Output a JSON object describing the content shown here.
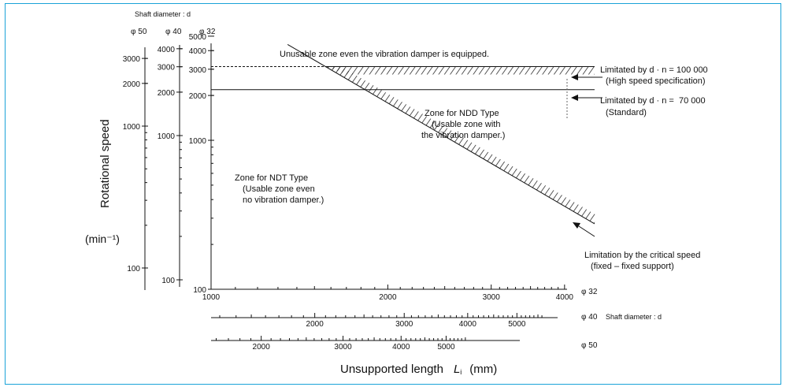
{
  "chart_data": {
    "type": "line",
    "title": "",
    "ylabel": "Rotational speed",
    "ylabel_unit": "(min⁻¹)",
    "xlabel": "Unsupported length",
    "xlabel_symbol": "L",
    "xlabel_symbol_sub": "i",
    "xlabel_unit": "(mm)",
    "shaft_diameter_label": "Shaft diameter : d",
    "scale": "log-log",
    "y_axes": [
      {
        "diameter": "φ 50",
        "ticks": [
          {
            "v": 100,
            "label": "100"
          },
          {
            "v": 1000,
            "label": "1000"
          },
          {
            "v": 2000,
            "label": "2000"
          },
          {
            "v": 3000,
            "label": "3000"
          }
        ]
      },
      {
        "diameter": "φ 40",
        "ticks": [
          {
            "v": 100,
            "label": "100"
          },
          {
            "v": 1000,
            "label": "1000"
          },
          {
            "v": 2000,
            "label": "2000"
          },
          {
            "v": 3000,
            "label": "3000"
          },
          {
            "v": 4000,
            "label": "4000"
          }
        ]
      },
      {
        "diameter": "φ 32",
        "ticks": [
          {
            "v": 100,
            "label": "100"
          },
          {
            "v": 1000,
            "label": "1000"
          },
          {
            "v": 2000,
            "label": "2000"
          },
          {
            "v": 3000,
            "label": "3000"
          },
          {
            "v": 4000,
            "label": "4000"
          },
          {
            "v": 5000,
            "label": "5000"
          }
        ]
      }
    ],
    "x_axes": [
      {
        "diameter": "φ 32",
        "xlim": [
          1000,
          4500
        ],
        "labels": [
          {
            "v": 1000,
            "label": "1000"
          },
          {
            "v": 2000,
            "label": "2000"
          },
          {
            "v": 3000,
            "label": "3000"
          },
          {
            "v": 4000,
            "label": "4000"
          }
        ]
      },
      {
        "diameter": "φ 40",
        "extra_label": "Shaft diameter : d",
        "labels": [
          {
            "v": 2000,
            "label": "2000"
          },
          {
            "v": 3000,
            "label": "3000"
          },
          {
            "v": 4000,
            "label": "4000"
          },
          {
            "v": 5000,
            "label": "5000"
          }
        ]
      },
      {
        "diameter": "φ 50",
        "labels": [
          {
            "v": 2000,
            "label": "2000"
          },
          {
            "v": 3000,
            "label": "3000"
          },
          {
            "v": 4000,
            "label": "4000"
          },
          {
            "v": 5000,
            "label": "5000"
          }
        ]
      }
    ],
    "series": [
      {
        "name": "Limitated by d · n = 100 000",
        "style": "dashed-to-solid",
        "x": [
          1000,
          4500
        ],
        "y": [
          3125,
          3125
        ]
      },
      {
        "name": "Limitated by d · n = 70 000",
        "style": "solid",
        "x": [
          1000,
          4500
        ],
        "y": [
          2187,
          2187
        ]
      },
      {
        "name": "Limitation by the critical speed",
        "style": "solid-hatched",
        "x": [
          1350,
          4500
        ],
        "y": [
          4400,
          275
        ]
      }
    ],
    "annotations": {
      "top": "Unusable zone even the vibration damper is equipped.",
      "limit_100000": [
        "Limitated by d · n = 100 000",
        "(High speed specification)"
      ],
      "limit_70000": [
        "Limitated by d · n =  70 000",
        "(Standard)"
      ],
      "ndd_zone": [
        "Zone for NDD Type",
        "(Usable zone with",
        "the vibration damper.)"
      ],
      "ndt_zone": [
        "Zone for NDT Type",
        "(Usable zone even",
        "no vibration damper.)"
      ],
      "critical": [
        "Limitation by the critical speed",
        "(fixed – fixed support)"
      ]
    }
  }
}
